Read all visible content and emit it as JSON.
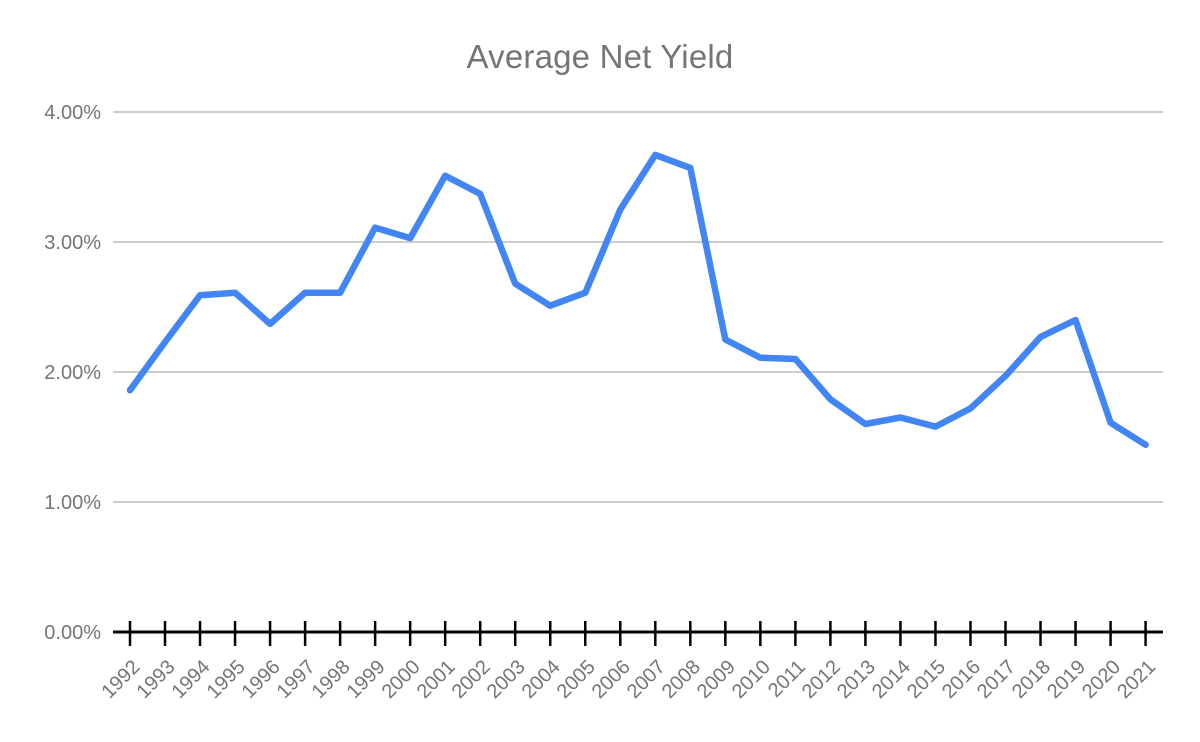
{
  "title": "Average Net Yield",
  "chart_data": {
    "type": "line",
    "title": "Average Net Yield",
    "categories": [
      "1992",
      "1993",
      "1994",
      "1995",
      "1996",
      "1997",
      "1998",
      "1999",
      "2000",
      "2001",
      "2002",
      "2003",
      "2004",
      "2005",
      "2006",
      "2007",
      "2008",
      "2009",
      "2010",
      "2011",
      "2012",
      "2013",
      "2014",
      "2015",
      "2016",
      "2017",
      "2018",
      "2019",
      "2020",
      "2021"
    ],
    "series": [
      {
        "name": "Average Net Yield",
        "values": [
          1.86,
          2.23,
          2.59,
          2.61,
          2.37,
          2.61,
          2.61,
          3.11,
          3.03,
          3.51,
          3.37,
          2.68,
          2.51,
          2.61,
          3.25,
          3.67,
          3.57,
          2.25,
          2.11,
          2.1,
          1.79,
          1.6,
          1.65,
          1.58,
          1.72,
          1.97,
          2.27,
          2.4,
          1.61,
          1.44
        ]
      }
    ],
    "xlabel": "",
    "ylabel": "",
    "ylim": [
      0,
      4
    ],
    "y_ticks": [
      {
        "label": "0.00%",
        "value": 0
      },
      {
        "label": "1.00%",
        "value": 1
      },
      {
        "label": "2.00%",
        "value": 2
      },
      {
        "label": "3.00%",
        "value": 3
      },
      {
        "label": "4.00%",
        "value": 4
      }
    ],
    "grid": true,
    "legend": "none",
    "colors": {
      "line": "#4285f4",
      "gridline": "#cccccc",
      "axis": "#000000",
      "tick": "#000000",
      "tick_label": "#757575",
      "title": "#757575",
      "background": "#ffffff"
    }
  }
}
